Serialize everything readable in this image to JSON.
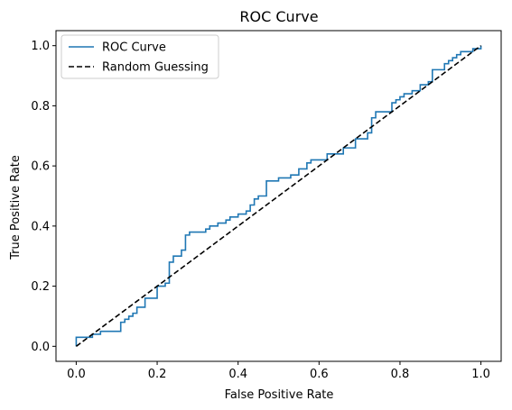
{
  "chart_data": {
    "type": "line",
    "title": "ROC Curve",
    "xlabel": "False Positive Rate",
    "ylabel": "True Positive Rate",
    "xlim": [
      -0.05,
      1.05
    ],
    "ylim": [
      -0.05,
      1.05
    ],
    "xticks": [
      0.0,
      0.2,
      0.4,
      0.6,
      0.8,
      1.0
    ],
    "xtick_labels": [
      "0.0",
      "0.2",
      "0.4",
      "0.6",
      "0.8",
      "1.0"
    ],
    "yticks": [
      0.0,
      0.2,
      0.4,
      0.6,
      0.8,
      1.0
    ],
    "ytick_labels": [
      "0.0",
      "0.2",
      "0.4",
      "0.6",
      "0.8",
      "1.0"
    ],
    "grid": false,
    "legend_position": "top-left",
    "series": [
      {
        "name": "ROC Curve",
        "style": "step",
        "color": "#1f77b4",
        "dash": "solid",
        "x": [
          0.0,
          0.0,
          0.04,
          0.04,
          0.06,
          0.06,
          0.11,
          0.11,
          0.12,
          0.12,
          0.13,
          0.13,
          0.14,
          0.14,
          0.15,
          0.15,
          0.17,
          0.17,
          0.2,
          0.2,
          0.22,
          0.22,
          0.23,
          0.23,
          0.24,
          0.24,
          0.26,
          0.26,
          0.27,
          0.27,
          0.28,
          0.28,
          0.32,
          0.32,
          0.33,
          0.33,
          0.35,
          0.35,
          0.37,
          0.37,
          0.38,
          0.38,
          0.4,
          0.4,
          0.42,
          0.42,
          0.43,
          0.43,
          0.44,
          0.44,
          0.45,
          0.45,
          0.47,
          0.47,
          0.5,
          0.5,
          0.53,
          0.53,
          0.55,
          0.55,
          0.57,
          0.57,
          0.58,
          0.58,
          0.62,
          0.62,
          0.66,
          0.66,
          0.69,
          0.69,
          0.72,
          0.72,
          0.73,
          0.73,
          0.74,
          0.74,
          0.78,
          0.78,
          0.79,
          0.79,
          0.8,
          0.8,
          0.81,
          0.81,
          0.83,
          0.83,
          0.85,
          0.85,
          0.87,
          0.87,
          0.88,
          0.88,
          0.91,
          0.91,
          0.92,
          0.92,
          0.93,
          0.93,
          0.94,
          0.94,
          0.95,
          0.95,
          0.98,
          0.98,
          1.0,
          1.0
        ],
        "y": [
          0.0,
          0.03,
          0.03,
          0.04,
          0.04,
          0.05,
          0.05,
          0.08,
          0.08,
          0.09,
          0.09,
          0.1,
          0.1,
          0.11,
          0.11,
          0.13,
          0.13,
          0.16,
          0.16,
          0.2,
          0.2,
          0.21,
          0.21,
          0.28,
          0.28,
          0.3,
          0.3,
          0.32,
          0.32,
          0.37,
          0.37,
          0.38,
          0.38,
          0.39,
          0.39,
          0.4,
          0.4,
          0.41,
          0.41,
          0.42,
          0.42,
          0.43,
          0.43,
          0.44,
          0.44,
          0.45,
          0.45,
          0.47,
          0.47,
          0.49,
          0.49,
          0.5,
          0.5,
          0.55,
          0.55,
          0.56,
          0.56,
          0.57,
          0.57,
          0.59,
          0.59,
          0.61,
          0.61,
          0.62,
          0.62,
          0.64,
          0.64,
          0.66,
          0.66,
          0.69,
          0.69,
          0.71,
          0.71,
          0.76,
          0.76,
          0.78,
          0.78,
          0.81,
          0.81,
          0.82,
          0.82,
          0.83,
          0.83,
          0.84,
          0.84,
          0.85,
          0.85,
          0.87,
          0.87,
          0.88,
          0.88,
          0.92,
          0.92,
          0.94,
          0.94,
          0.95,
          0.95,
          0.96,
          0.96,
          0.97,
          0.97,
          0.98,
          0.98,
          0.99,
          0.99,
          1.0
        ]
      },
      {
        "name": "Random Guessing",
        "style": "line",
        "color": "#000000",
        "dash": "dashed",
        "x": [
          0.0,
          1.0
        ],
        "y": [
          0.0,
          1.0
        ]
      }
    ]
  }
}
